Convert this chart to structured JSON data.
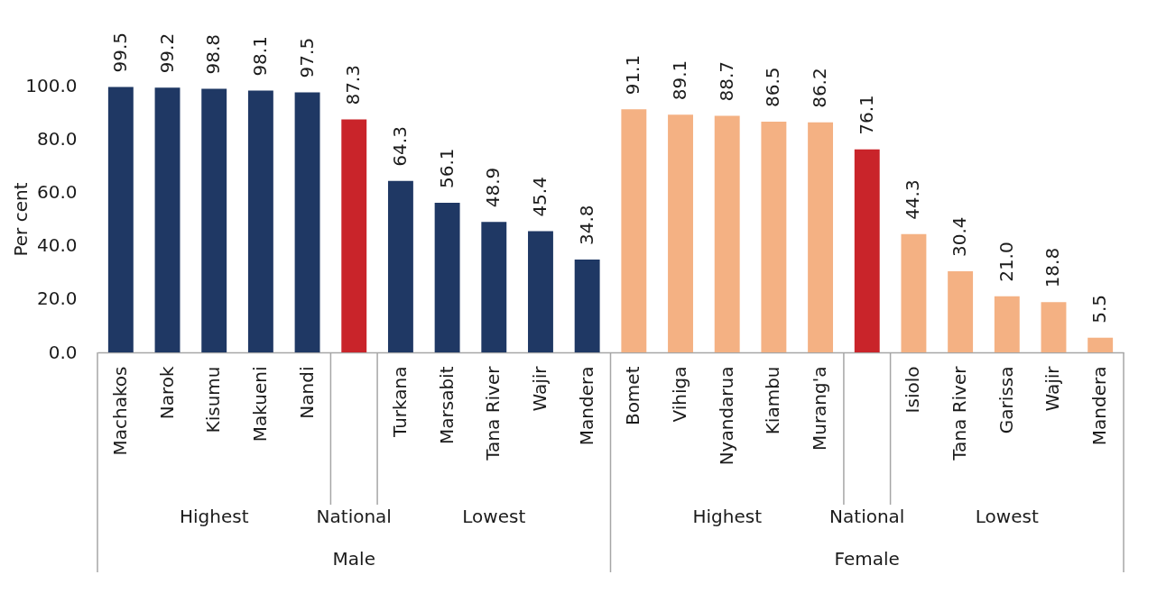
{
  "chart_data": {
    "type": "bar",
    "ylabel": "Per cent",
    "categories": [
      "Machakos",
      "Narok",
      "Kisumu",
      "Makueni",
      "Nandi",
      null,
      "Turkana",
      "Marsabit",
      "Tana River",
      "Wajir",
      "Mandera",
      "Bomet",
      "Vihiga",
      "Nyandarua",
      "Kiambu",
      "Murang'a",
      null,
      "Isiolo",
      "Tana River",
      "Garissa",
      "Wajir",
      "Mandera"
    ],
    "values": [
      99.5,
      99.2,
      98.8,
      98.1,
      97.5,
      87.3,
      64.3,
      56.1,
      48.9,
      45.4,
      34.8,
      91.1,
      89.1,
      88.7,
      86.5,
      86.2,
      76.1,
      44.3,
      30.4,
      21.0,
      18.8,
      5.5
    ],
    "value_labels": [
      "99.5",
      "99.2",
      "98.8",
      "98.1",
      "97.5",
      "87.3",
      "64.3",
      "56.1",
      "48.9",
      "45.4",
      "34.8",
      "91.1",
      "89.1",
      "88.7",
      "86.5",
      "86.2",
      "76.1",
      "44.3",
      "30.4",
      "21.0",
      "18.8",
      "5.5"
    ],
    "colors": [
      "#1f3864",
      "#1f3864",
      "#1f3864",
      "#1f3864",
      "#1f3864",
      "#c9242a",
      "#1f3864",
      "#1f3864",
      "#1f3864",
      "#1f3864",
      "#1f3864",
      "#f4b183",
      "#f4b183",
      "#f4b183",
      "#f4b183",
      "#f4b183",
      "#c9242a",
      "#f4b183",
      "#f4b183",
      "#f4b183",
      "#f4b183",
      "#f4b183"
    ],
    "ylim": [
      0,
      100
    ],
    "yticks": [
      {
        "value": 0,
        "label": "0.0"
      },
      {
        "value": 20,
        "label": "20.0"
      },
      {
        "value": 40,
        "label": "40.0"
      },
      {
        "value": 60,
        "label": "60.0"
      },
      {
        "value": 80,
        "label": "80.0"
      },
      {
        "value": 100,
        "label": "100.0"
      }
    ],
    "annotations": [
      "Highest",
      "National",
      "Lowest",
      "Male",
      "Highest",
      "National",
      "Lowest",
      "Female"
    ]
  }
}
